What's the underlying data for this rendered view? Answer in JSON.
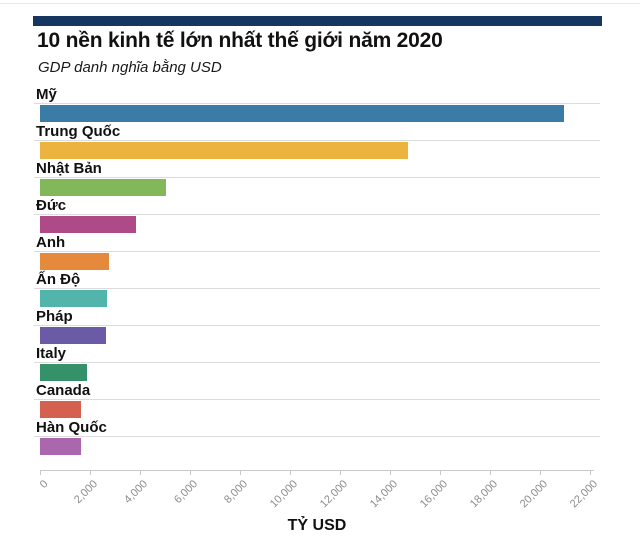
{
  "header": {
    "title": "10 nền kinh tế lớn nhất thế giới năm 2020",
    "subtitle": "GDP danh nghĩa bằng USD",
    "accent_bar_color": "#16355f"
  },
  "chart_data": {
    "type": "bar",
    "orientation": "horizontal",
    "title": "10 nền kinh tế lớn nhất thế giới năm 2020",
    "subtitle": "GDP danh nghĩa bằng USD",
    "xlabel": "TỶ USD",
    "xlim": [
      0,
      22000
    ],
    "grid": "row-separator-lines",
    "legend": "none",
    "x_ticks": [
      "0",
      "2,000",
      "4,000",
      "6,000",
      "8,000",
      "10,000",
      "12,000",
      "14,000",
      "16,000",
      "18,000",
      "20,000",
      "22,000"
    ],
    "x_tick_values": [
      0,
      2000,
      4000,
      6000,
      8000,
      10000,
      12000,
      14000,
      16000,
      18000,
      20000,
      22000
    ],
    "categories": [
      "Mỹ",
      "Trung Quốc",
      "Nhật Bản",
      "Đức",
      "Anh",
      "Ấn Độ",
      "Pháp",
      "Italy",
      "Canada",
      "Hàn Quốc"
    ],
    "values": [
      20940,
      14720,
      5050,
      3850,
      2760,
      2660,
      2630,
      1890,
      1650,
      1630
    ],
    "bar_colors": [
      "#3a7ca5",
      "#ecb33f",
      "#82b859",
      "#ad4a87",
      "#e58a3d",
      "#52b5ac",
      "#6b5ba6",
      "#35916a",
      "#d4604f",
      "#ab67ad"
    ]
  }
}
